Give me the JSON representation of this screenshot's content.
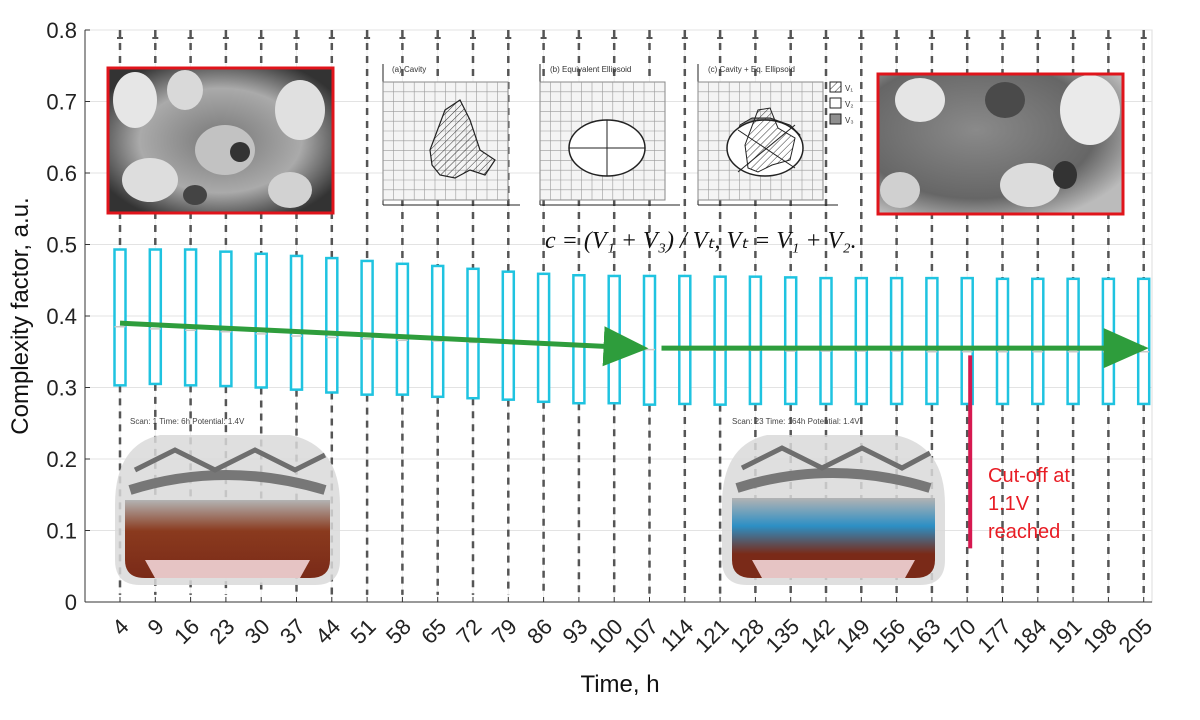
{
  "chart_data": {
    "type": "box",
    "xlabel": "Time, h",
    "ylabel": "Complexity factor, a.u.",
    "ylim": [
      0,
      0.8
    ],
    "yticks": [
      "0",
      "0.1",
      "0.2",
      "0.3",
      "0.4",
      "0.5",
      "0.6",
      "0.7",
      "0.8"
    ],
    "categories": [
      "4",
      "9",
      "16",
      "23",
      "30",
      "37",
      "44",
      "51",
      "58",
      "65",
      "72",
      "79",
      "86",
      "93",
      "100",
      "107",
      "114",
      "121",
      "128",
      "135",
      "142",
      "149",
      "156",
      "163",
      "170",
      "177",
      "184",
      "191",
      "198",
      "205"
    ],
    "q1": [
      0.303,
      0.305,
      0.303,
      0.302,
      0.3,
      0.297,
      0.293,
      0.29,
      0.29,
      0.287,
      0.285,
      0.283,
      0.28,
      0.278,
      0.278,
      0.276,
      0.277,
      0.276,
      0.277,
      0.277,
      0.277,
      0.277,
      0.277,
      0.277,
      0.277,
      0.277,
      0.277,
      0.277,
      0.277,
      0.277
    ],
    "median": [
      0.385,
      0.382,
      0.38,
      0.378,
      0.375,
      0.372,
      0.37,
      0.368,
      0.366,
      0.365,
      0.363,
      0.362,
      0.36,
      0.358,
      0.356,
      0.353,
      0.352,
      0.352,
      0.352,
      0.351,
      0.351,
      0.351,
      0.351,
      0.35,
      0.35,
      0.35,
      0.35,
      0.35,
      0.35,
      0.35
    ],
    "q3": [
      0.493,
      0.493,
      0.493,
      0.49,
      0.487,
      0.484,
      0.481,
      0.477,
      0.473,
      0.47,
      0.466,
      0.462,
      0.459,
      0.457,
      0.456,
      0.456,
      0.456,
      0.455,
      0.455,
      0.454,
      0.453,
      0.453,
      0.453,
      0.453,
      0.453,
      0.452,
      0.452,
      0.452,
      0.452,
      0.452
    ],
    "whisker_low": [
      0.01,
      0.01,
      0.01,
      0.01,
      0.01,
      0.01,
      0.01,
      0.01,
      0.01,
      0.01,
      0.01,
      0.01,
      0.01,
      0.01,
      0.01,
      0.01,
      0.01,
      0.01,
      0.01,
      0.01,
      0.01,
      0.01,
      0.01,
      0.01,
      0.01,
      0.01,
      0.01,
      0.01,
      0.01,
      0.01
    ],
    "whisker_high": [
      0.8,
      0.8,
      0.8,
      0.8,
      0.8,
      0.8,
      0.8,
      0.8,
      0.8,
      0.8,
      0.8,
      0.8,
      0.8,
      0.8,
      0.8,
      0.8,
      0.8,
      0.8,
      0.8,
      0.8,
      0.8,
      0.8,
      0.8,
      0.8,
      0.8,
      0.8,
      0.8,
      0.8,
      0.8,
      0.8
    ],
    "trend_lines": [
      {
        "x_start": "4",
        "y_start": 0.39,
        "x_end": "107",
        "y_end": 0.355
      },
      {
        "x_start": "107",
        "y_start": 0.355,
        "x_end": "205",
        "y_end": 0.355
      }
    ],
    "cutoff": {
      "x": "170",
      "y_top": 0.345,
      "y_bottom": 0.075,
      "text_lines": [
        "Cut-off at",
        "1.1V",
        "reached"
      ]
    },
    "grid": true,
    "colors": {
      "box": "#1fc3e0",
      "median": "#c9c9c9",
      "whisker": "#555555",
      "trend": "#2e9d3c",
      "cutoff": "#d6184f",
      "cutoff_text": "#e81c24",
      "inset_frame": "#e0141b"
    }
  },
  "insets": {
    "panel_a_title": "(a) Cavity",
    "panel_b_title": "(b) Equivalent Ellipsoid",
    "panel_c_title": "(c) Cavity + Eq. Ellipsoid",
    "legend": [
      "V₁",
      "V₂",
      "V₃"
    ],
    "formula": "c = (V₁ + V₃) / Vₜ,  Vₜ = V₁ + V₂.",
    "scan_left": "Scan: 1 Time: 6h Potential: 1.4V",
    "scan_right": "Scan: 23 Time: 164h Potential: 1.4V"
  }
}
